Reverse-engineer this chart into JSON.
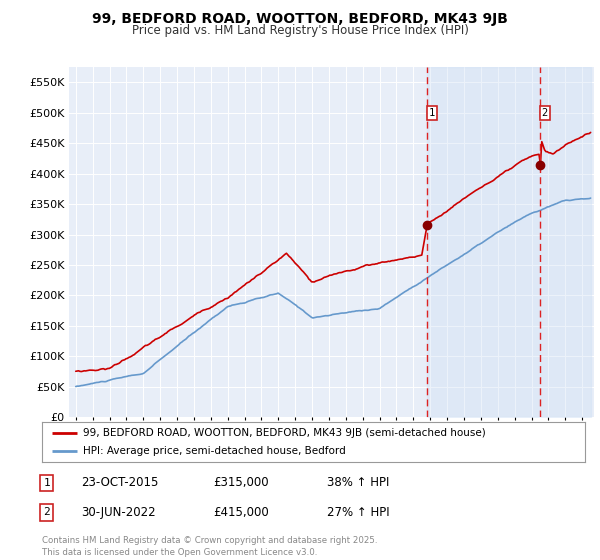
{
  "title": "99, BEDFORD ROAD, WOOTTON, BEDFORD, MK43 9JB",
  "subtitle": "Price paid vs. HM Land Registry's House Price Index (HPI)",
  "background_color": "#ffffff",
  "plot_bg_color": "#e8eef8",
  "grid_color": "#c8d4e8",
  "legend_label_red": "99, BEDFORD ROAD, WOOTTON, BEDFORD, MK43 9JB (semi-detached house)",
  "legend_label_blue": "HPI: Average price, semi-detached house, Bedford",
  "red_color": "#cc0000",
  "blue_color": "#6699cc",
  "vline_color": "#dd2222",
  "sale1_year": 2015.81,
  "sale1_price": 315000,
  "sale1_date": "23-OCT-2015",
  "sale1_label": "38% ↑ HPI",
  "sale2_year": 2022.49,
  "sale2_price": 415000,
  "sale2_date": "30-JUN-2022",
  "sale2_label": "27% ↑ HPI",
  "ylim": [
    0,
    575000
  ],
  "footer": "Contains HM Land Registry data © Crown copyright and database right 2025.\nThis data is licensed under the Open Government Licence v3.0.",
  "yticks": [
    0,
    50000,
    100000,
    150000,
    200000,
    250000,
    300000,
    350000,
    400000,
    450000,
    500000,
    550000
  ],
  "ytick_labels": [
    "£0",
    "£50K",
    "£100K",
    "£150K",
    "£200K",
    "£250K",
    "£300K",
    "£350K",
    "£400K",
    "£450K",
    "£500K",
    "£550K"
  ],
  "xstart": 1995,
  "xend": 2025
}
